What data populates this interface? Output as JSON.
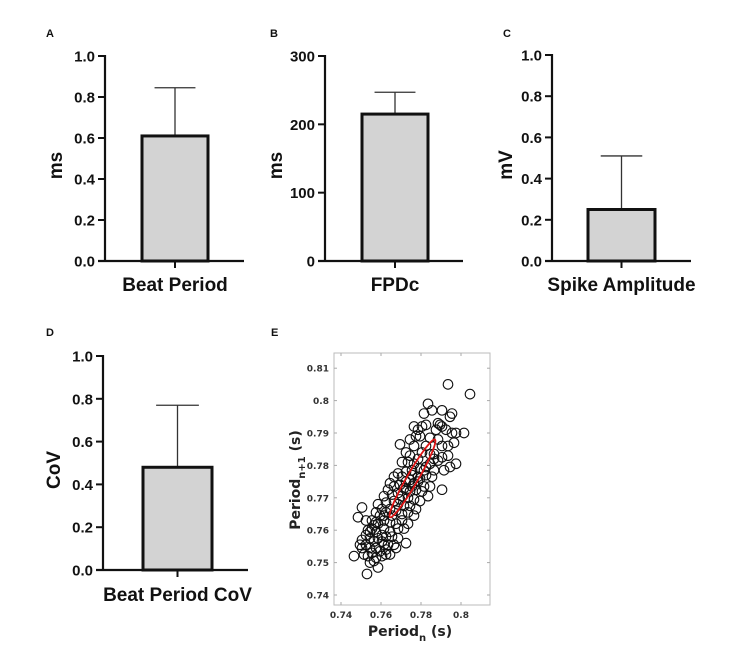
{
  "chart_data": [
    {
      "panel": "A",
      "type": "bar",
      "categories": [
        "Beat Period"
      ],
      "values": [
        0.61
      ],
      "error_upper": [
        0.845
      ],
      "ylabel": "ms",
      "xlabel": "",
      "ylim": [
        0,
        1.0
      ],
      "yticks": [
        "0.0",
        "0.2",
        "0.4",
        "0.6",
        "0.8",
        "1.0"
      ],
      "ytick_values": [
        0,
        0.2,
        0.4,
        0.6,
        0.8,
        1.0
      ],
      "bar_color": "#d3d3d3"
    },
    {
      "panel": "B",
      "type": "bar",
      "categories": [
        "FPDc"
      ],
      "values": [
        215
      ],
      "error_upper": [
        247
      ],
      "ylabel": "ms",
      "xlabel": "",
      "ylim": [
        0,
        300
      ],
      "yticks": [
        "0",
        "100",
        "200",
        "300"
      ],
      "ytick_values": [
        0,
        100,
        200,
        300
      ],
      "bar_color": "#d3d3d3"
    },
    {
      "panel": "C",
      "type": "bar",
      "categories": [
        "Spike Amplitude"
      ],
      "values": [
        0.25
      ],
      "error_upper": [
        0.51
      ],
      "ylabel": "mV",
      "xlabel": "",
      "ylim": [
        0,
        1.0
      ],
      "yticks": [
        "0.0",
        "0.2",
        "0.4",
        "0.6",
        "0.8",
        "1.0"
      ],
      "ytick_values": [
        0,
        0.2,
        0.4,
        0.6,
        0.8,
        1.0
      ],
      "bar_color": "#d3d3d3"
    },
    {
      "panel": "D",
      "type": "bar",
      "categories": [
        "Beat Period CoV"
      ],
      "values": [
        0.48
      ],
      "error_upper": [
        0.77
      ],
      "ylabel": "CoV",
      "xlabel": "",
      "ylim": [
        0,
        1.0
      ],
      "yticks": [
        "0.0",
        "0.2",
        "0.4",
        "0.6",
        "0.8",
        "1.0"
      ],
      "ytick_values": [
        0,
        0.2,
        0.4,
        0.6,
        0.8,
        1.0
      ],
      "bar_color": "#d3d3d3"
    },
    {
      "panel": "E",
      "type": "scatter",
      "title": "",
      "xlabel": "Period",
      "xlabel_sub": "n",
      "xlabel_unit": "(s)",
      "ylabel": "Period",
      "ylabel_sub": "n+1",
      "ylabel_unit": "(s)",
      "xlim": [
        0.7365,
        0.8145
      ],
      "ylim": [
        0.7365,
        0.8145
      ],
      "xticks": [
        "0.74",
        "0.76",
        "0.78",
        "0.8"
      ],
      "xtick_values": [
        0.74,
        0.76,
        0.78,
        0.8
      ],
      "yticks": [
        "0.74",
        "0.75",
        "0.76",
        "0.77",
        "0.78",
        "0.79",
        "0.8",
        "0.81"
      ],
      "ytick_values": [
        0.74,
        0.75,
        0.76,
        0.77,
        0.78,
        0.79,
        0.8,
        0.81
      ],
      "marker": "open-circle",
      "ellipse": {
        "center": [
          0.7755,
          0.776
        ],
        "major_end_low": [
          0.7645,
          0.764
        ],
        "major_end_high": [
          0.787,
          0.788
        ],
        "minor_halfwidth": 0.0018,
        "color": "#e01414"
      },
      "points": [
        [
          0.7935,
          0.805
        ],
        [
          0.8045,
          0.802
        ],
        [
          0.7835,
          0.799
        ],
        [
          0.7855,
          0.797
        ],
        [
          0.7905,
          0.797
        ],
        [
          0.7945,
          0.795
        ],
        [
          0.7955,
          0.796
        ],
        [
          0.7815,
          0.796
        ],
        [
          0.7885,
          0.793
        ],
        [
          0.7895,
          0.7925
        ],
        [
          0.7905,
          0.792
        ],
        [
          0.7875,
          0.791
        ],
        [
          0.7925,
          0.791
        ],
        [
          0.7955,
          0.79
        ],
        [
          0.7975,
          0.79
        ],
        [
          0.8015,
          0.79
        ],
        [
          0.7765,
          0.792
        ],
        [
          0.7785,
          0.791
        ],
        [
          0.7805,
          0.792
        ],
        [
          0.7825,
          0.7925
        ],
        [
          0.7795,
          0.789
        ],
        [
          0.7775,
          0.789
        ],
        [
          0.7845,
          0.7885
        ],
        [
          0.7885,
          0.788
        ],
        [
          0.7905,
          0.786
        ],
        [
          0.7935,
          0.786
        ],
        [
          0.7965,
          0.787
        ],
        [
          0.7745,
          0.788
        ],
        [
          0.7765,
          0.786
        ],
        [
          0.7825,
          0.786
        ],
        [
          0.7805,
          0.784
        ],
        [
          0.7845,
          0.7835
        ],
        [
          0.7695,
          0.7865
        ],
        [
          0.7725,
          0.784
        ],
        [
          0.7745,
          0.783
        ],
        [
          0.7785,
          0.782
        ],
        [
          0.7865,
          0.782
        ],
        [
          0.7885,
          0.7815
        ],
        [
          0.7905,
          0.7825
        ],
        [
          0.7935,
          0.783
        ],
        [
          0.7975,
          0.7805
        ],
        [
          0.7945,
          0.7795
        ],
        [
          0.7915,
          0.7785
        ],
        [
          0.7865,
          0.7785
        ],
        [
          0.7825,
          0.7795
        ],
        [
          0.7795,
          0.779
        ],
        [
          0.7765,
          0.7805
        ],
        [
          0.7735,
          0.781
        ],
        [
          0.7705,
          0.781
        ],
        [
          0.7725,
          0.778
        ],
        [
          0.7755,
          0.777
        ],
        [
          0.7795,
          0.776
        ],
        [
          0.7825,
          0.777
        ],
        [
          0.7855,
          0.7765
        ],
        [
          0.7845,
          0.7735
        ],
        [
          0.7815,
          0.7735
        ],
        [
          0.7905,
          0.7725
        ],
        [
          0.7685,
          0.7775
        ],
        [
          0.7665,
          0.7765
        ],
        [
          0.7705,
          0.7765
        ],
        [
          0.7745,
          0.7755
        ],
        [
          0.7765,
          0.7745
        ],
        [
          0.7785,
          0.775
        ],
        [
          0.7725,
          0.775
        ],
        [
          0.7695,
          0.774
        ],
        [
          0.7715,
          0.773
        ],
        [
          0.7745,
          0.772
        ],
        [
          0.7775,
          0.7725
        ],
        [
          0.7805,
          0.772
        ],
        [
          0.7835,
          0.7705
        ],
        [
          0.7665,
          0.7735
        ],
        [
          0.7645,
          0.7745
        ],
        [
          0.7635,
          0.7725
        ],
        [
          0.7655,
          0.771
        ],
        [
          0.7685,
          0.7715
        ],
        [
          0.7705,
          0.7705
        ],
        [
          0.7735,
          0.77
        ],
        [
          0.7765,
          0.7695
        ],
        [
          0.7795,
          0.769
        ],
        [
          0.7745,
          0.7675
        ],
        [
          0.7715,
          0.7675
        ],
        [
          0.7685,
          0.768
        ],
        [
          0.7665,
          0.769
        ],
        [
          0.7615,
          0.7705
        ],
        [
          0.7625,
          0.7685
        ],
        [
          0.7645,
          0.7665
        ],
        [
          0.7675,
          0.766
        ],
        [
          0.7705,
          0.765
        ],
        [
          0.7735,
          0.7655
        ],
        [
          0.7765,
          0.7645
        ],
        [
          0.7775,
          0.7665
        ],
        [
          0.7655,
          0.7645
        ],
        [
          0.7625,
          0.7655
        ],
        [
          0.7605,
          0.7665
        ],
        [
          0.7585,
          0.768
        ],
        [
          0.7575,
          0.7655
        ],
        [
          0.7595,
          0.7645
        ],
        [
          0.7615,
          0.763
        ],
        [
          0.7645,
          0.7625
        ],
        [
          0.7675,
          0.762
        ],
        [
          0.7705,
          0.763
        ],
        [
          0.7735,
          0.762
        ],
        [
          0.7715,
          0.7605
        ],
        [
          0.7685,
          0.7605
        ],
        [
          0.7505,
          0.767
        ],
        [
          0.7485,
          0.764
        ],
        [
          0.7525,
          0.763
        ],
        [
          0.7555,
          0.763
        ],
        [
          0.7565,
          0.7615
        ],
        [
          0.7585,
          0.762
        ],
        [
          0.7615,
          0.7605
        ],
        [
          0.7645,
          0.7595
        ],
        [
          0.7555,
          0.7605
        ],
        [
          0.7535,
          0.76
        ],
        [
          0.7575,
          0.7595
        ],
        [
          0.7605,
          0.7585
        ],
        [
          0.7625,
          0.758
        ],
        [
          0.7655,
          0.758
        ],
        [
          0.7685,
          0.7575
        ],
        [
          0.7725,
          0.756
        ],
        [
          0.7525,
          0.7585
        ],
        [
          0.7545,
          0.7575
        ],
        [
          0.7565,
          0.7565
        ],
        [
          0.7585,
          0.7575
        ],
        [
          0.7605,
          0.7565
        ],
        [
          0.7635,
          0.7555
        ],
        [
          0.7665,
          0.7555
        ],
        [
          0.7505,
          0.757
        ],
        [
          0.7525,
          0.7555
        ],
        [
          0.7545,
          0.7545
        ],
        [
          0.7575,
          0.7545
        ],
        [
          0.7595,
          0.7535
        ],
        [
          0.7625,
          0.754
        ],
        [
          0.7645,
          0.7525
        ],
        [
          0.7505,
          0.7545
        ],
        [
          0.7515,
          0.7525
        ],
        [
          0.7535,
          0.752
        ],
        [
          0.7555,
          0.753
        ],
        [
          0.7575,
          0.7515
        ],
        [
          0.7605,
          0.752
        ],
        [
          0.7625,
          0.7525
        ],
        [
          0.7565,
          0.7505
        ],
        [
          0.7545,
          0.75
        ],
        [
          0.7465,
          0.752
        ],
        [
          0.7585,
          0.7485
        ],
        [
          0.753,
          0.7465
        ],
        [
          0.7495,
          0.7555
        ],
        [
          0.7675,
          0.7545
        ],
        [
          0.7615,
          0.7555
        ],
        [
          0.7545,
          0.7595
        ],
        [
          0.7575,
          0.7625
        ],
        [
          0.7615,
          0.7645
        ],
        [
          0.7695,
          0.7695
        ],
        [
          0.7725,
          0.7725
        ],
        [
          0.7755,
          0.7735
        ],
        [
          0.7785,
          0.7765
        ],
        [
          0.7815,
          0.7785
        ],
        [
          0.7845,
          0.7805
        ],
        [
          0.7865,
          0.7835
        ],
        [
          0.7755,
          0.7785
        ]
      ]
    }
  ],
  "panels": {
    "A": {
      "label": "A"
    },
    "B": {
      "label": "B"
    },
    "C": {
      "label": "C"
    },
    "D": {
      "label": "D"
    },
    "E": {
      "label": "E"
    }
  }
}
